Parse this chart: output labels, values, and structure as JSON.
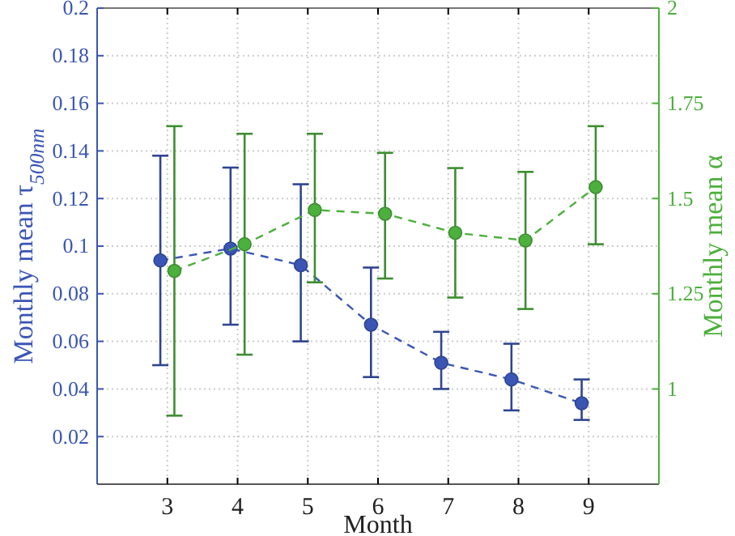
{
  "chart_data": {
    "type": "line",
    "xlabel": "Month",
    "ylabel": "Monthly mean τ$_{500nm}$",
    "y2label": "Monthly mean α",
    "xlim": [
      2,
      10
    ],
    "xticks": [
      3,
      4,
      5,
      6,
      7,
      8,
      9
    ],
    "ylim": [
      0,
      0.2
    ],
    "yticks": [
      0.02,
      0.04,
      0.06,
      0.08,
      0.1,
      0.12,
      0.14,
      0.16,
      0.18,
      0.2
    ],
    "y2lim": [
      0.75,
      2
    ],
    "y2ticks": [
      1,
      1.25,
      1.5,
      1.75,
      2
    ],
    "grid": true,
    "marker": "circle",
    "line_style": "dashed",
    "series": [
      {
        "color": "#3a55b4",
        "x": [
          2.9,
          3.9,
          4.9,
          5.9,
          6.9,
          7.9,
          8.9
        ],
        "values": [
          0.094,
          0.099,
          0.092,
          0.067,
          0.051,
          0.044,
          0.034
        ],
        "errors": [
          [
            0.05,
            0.138
          ],
          [
            0.067,
            0.133
          ],
          [
            0.06,
            0.126
          ],
          [
            0.045,
            0.091
          ],
          [
            0.04,
            0.064
          ],
          [
            0.031,
            0.059
          ],
          [
            0.027,
            0.044
          ]
        ]
      },
      {
        "color": "#4cb03c",
        "axis": "y2",
        "x": [
          3.1,
          4.1,
          5.1,
          6.1,
          7.1,
          8.1,
          9.1
        ],
        "values": [
          1.31,
          1.38,
          1.47,
          1.46,
          1.41,
          1.39,
          1.53
        ],
        "errors": [
          [
            0.93,
            1.69
          ],
          [
            1.09,
            1.67
          ],
          [
            1.28,
            1.67
          ],
          [
            1.29,
            1.62
          ],
          [
            1.24,
            1.58
          ],
          [
            1.21,
            1.57
          ],
          [
            1.38,
            1.69
          ]
        ]
      }
    ]
  }
}
